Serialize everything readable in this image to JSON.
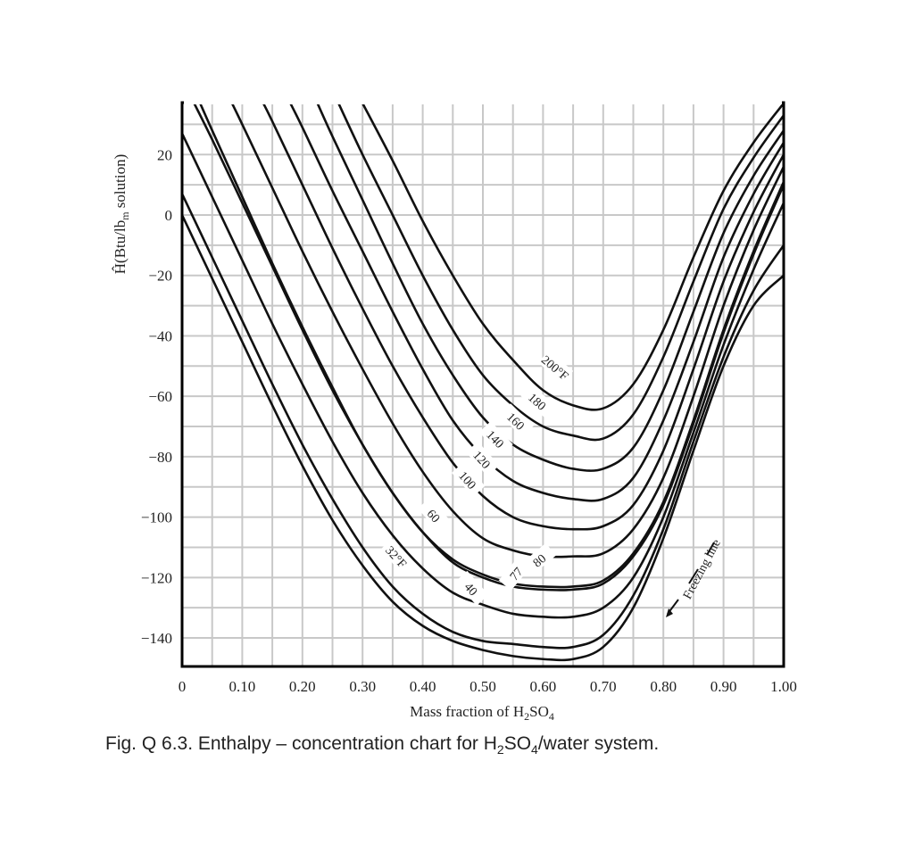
{
  "caption": {
    "prefix": "Fig. Q 6.3. Enthalpy – concentration chart for H",
    "sub1": "2",
    "mid": "SO",
    "sub2": "4",
    "suffix": "/water system."
  },
  "colors": {
    "curve": "#111111",
    "grid": "#c8c8c8",
    "frame": "#000000",
    "background": "#ffffff"
  },
  "chart_data": {
    "type": "line",
    "title": "Enthalpy – concentration chart for H2SO4/water system",
    "xlabel": "Mass fraction of H2SO4",
    "ylabel": "Ĥ (Btu/lbm solution)",
    "xlim": [
      0,
      1.0
    ],
    "ylim": [
      -150,
      37
    ],
    "grid": true,
    "x_ticks": [
      0,
      0.1,
      0.2,
      0.3,
      0.4,
      0.5,
      0.6,
      0.7,
      0.8,
      0.9,
      1.0
    ],
    "x_tick_labels": [
      "0",
      "0.10",
      "0.20",
      "0.30",
      "0.40",
      "0.50",
      "0.60",
      "0.70",
      "0.80",
      "0.90",
      "1.00"
    ],
    "y_ticks": [
      20,
      0,
      -20,
      -40,
      -60,
      -80,
      -100,
      -120,
      -140
    ],
    "y_tick_labels": [
      "20",
      "0",
      "−20",
      "−40",
      "−60",
      "−80",
      "−100",
      "−120",
      "−140"
    ],
    "annotations": [
      "Freezing line"
    ],
    "series": [
      {
        "name": "200°F",
        "label": "200°F",
        "x": [
          0.3,
          0.35,
          0.4,
          0.45,
          0.5,
          0.55,
          0.6,
          0.65,
          0.7,
          0.75,
          0.8,
          0.85,
          0.9,
          0.95,
          1.0
        ],
        "values": [
          37,
          18,
          -2,
          -20,
          -36,
          -48,
          -58,
          -63,
          -64,
          -56,
          -38,
          -14,
          8,
          24,
          37
        ]
      },
      {
        "name": "180°F",
        "label": "180",
        "x": [
          0.26,
          0.3,
          0.35,
          0.4,
          0.45,
          0.5,
          0.55,
          0.6,
          0.65,
          0.7,
          0.75,
          0.8,
          0.85,
          0.9,
          0.95,
          1.0
        ],
        "values": [
          37,
          20,
          0,
          -20,
          -38,
          -53,
          -63,
          -70,
          -73,
          -74,
          -66,
          -47,
          -22,
          2,
          19,
          33
        ]
      },
      {
        "name": "160°F",
        "label": "160",
        "x": [
          0.225,
          0.25,
          0.3,
          0.35,
          0.4,
          0.45,
          0.5,
          0.55,
          0.6,
          0.65,
          0.7,
          0.75,
          0.8,
          0.85,
          0.9,
          0.95,
          1.0
        ],
        "values": [
          37,
          26,
          5,
          -16,
          -36,
          -53,
          -67,
          -76,
          -81,
          -84,
          -84,
          -77,
          -58,
          -32,
          -6,
          13,
          28
        ]
      },
      {
        "name": "140°F",
        "label": "140",
        "x": [
          0.18,
          0.2,
          0.25,
          0.3,
          0.35,
          0.4,
          0.45,
          0.5,
          0.55,
          0.6,
          0.65,
          0.7,
          0.75,
          0.8,
          0.85,
          0.9,
          0.95,
          1.0
        ],
        "values": [
          37,
          29,
          8,
          -12,
          -32,
          -51,
          -68,
          -80,
          -88,
          -92,
          -94,
          -94,
          -87,
          -68,
          -42,
          -14,
          7,
          24
        ]
      },
      {
        "name": "120°F",
        "label": "120",
        "x": [
          0.135,
          0.15,
          0.2,
          0.25,
          0.3,
          0.35,
          0.4,
          0.45,
          0.5,
          0.55,
          0.6,
          0.65,
          0.7,
          0.75,
          0.8,
          0.85,
          0.9,
          0.95,
          1.0
        ],
        "values": [
          37,
          31,
          10,
          -11,
          -31,
          -50,
          -67,
          -82,
          -93,
          -100,
          -103,
          -104,
          -103,
          -96,
          -78,
          -51,
          -22,
          1,
          20
        ]
      },
      {
        "name": "100°F",
        "label": "100",
        "x": [
          0.083,
          0.1,
          0.15,
          0.2,
          0.25,
          0.3,
          0.35,
          0.4,
          0.45,
          0.5,
          0.55,
          0.6,
          0.65,
          0.7,
          0.75,
          0.8,
          0.85,
          0.9,
          0.95,
          1.0
        ],
        "values": [
          37,
          30,
          9,
          -12,
          -32,
          -51,
          -69,
          -85,
          -98,
          -107,
          -111,
          -113,
          -113,
          -112,
          -104,
          -87,
          -60,
          -30,
          -5,
          16
        ]
      },
      {
        "name": "80°F",
        "label": "80",
        "x": [
          0.02,
          0.05,
          0.1,
          0.15,
          0.2,
          0.25,
          0.3,
          0.35,
          0.4,
          0.45,
          0.5,
          0.55,
          0.6,
          0.65,
          0.7,
          0.75,
          0.8,
          0.85,
          0.9,
          0.95,
          1.0
        ],
        "values": [
          37,
          25,
          4,
          -17,
          -38,
          -58,
          -76,
          -92,
          -105,
          -114,
          -119,
          -122,
          -123,
          -123,
          -121,
          -112,
          -95,
          -68,
          -38,
          -12,
          11
        ]
      },
      {
        "name": "77°F",
        "label": "77",
        "x": [
          0.03,
          0.05,
          0.1,
          0.15,
          0.2,
          0.25,
          0.3,
          0.35,
          0.4,
          0.45,
          0.5,
          0.55,
          0.6,
          0.65,
          0.7,
          0.75,
          0.8,
          0.85,
          0.9,
          0.95,
          1.0
        ],
        "values": [
          37,
          28,
          6,
          -16,
          -37,
          -57,
          -76,
          -92,
          -105,
          -115,
          -120,
          -123,
          -124,
          -124,
          -122,
          -113,
          -96,
          -69,
          -39,
          -13,
          10
        ]
      },
      {
        "name": "60°F",
        "label": "60",
        "x": [
          0,
          0.05,
          0.1,
          0.15,
          0.2,
          0.25,
          0.3,
          0.35,
          0.4,
          0.45,
          0.5,
          0.55,
          0.6,
          0.65,
          0.7,
          0.75,
          0.8,
          0.85,
          0.9,
          0.95,
          1.0
        ],
        "values": [
          27,
          6,
          -15,
          -36,
          -56,
          -75,
          -92,
          -106,
          -117,
          -125,
          -129,
          -132,
          -133,
          -133,
          -130,
          -120,
          -100,
          -72,
          -43,
          -18,
          4
        ]
      },
      {
        "name": "40°F",
        "label": "40",
        "x": [
          0,
          0.05,
          0.1,
          0.15,
          0.2,
          0.25,
          0.3,
          0.35,
          0.4,
          0.45,
          0.5,
          0.55,
          0.6,
          0.65,
          0.7,
          0.75,
          0.8,
          0.85,
          0.9,
          0.95,
          1.0
        ],
        "values": [
          7,
          -14,
          -35,
          -56,
          -76,
          -94,
          -110,
          -123,
          -132,
          -138,
          -141,
          -142,
          -143,
          -143,
          -139,
          -126,
          -104,
          -75,
          -47,
          -25,
          -10
        ]
      },
      {
        "name": "32°F",
        "label": "32°F",
        "x": [
          0,
          0.05,
          0.1,
          0.15,
          0.2,
          0.25,
          0.3,
          0.35,
          0.4,
          0.45,
          0.5,
          0.55,
          0.6,
          0.65,
          0.7,
          0.75,
          0.8,
          0.85,
          0.9,
          0.95,
          1.0
        ],
        "values": [
          0,
          -21,
          -42,
          -63,
          -83,
          -101,
          -116,
          -128,
          -136,
          -141,
          -144,
          -146,
          -147,
          -147,
          -143,
          -130,
          -107,
          -78,
          -50,
          -30,
          -20
        ]
      }
    ]
  }
}
